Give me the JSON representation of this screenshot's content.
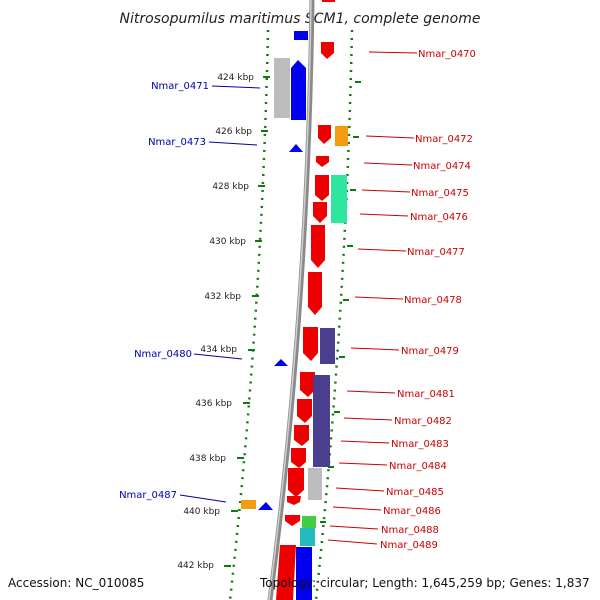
{
  "title": "Nitrosopumilus maritimus SCM1, complete genome",
  "footer": {
    "accession": "Accession: NC_010085",
    "topology": "Topology: circular; Length: 1,645,259 bp; Genes: 1,837"
  },
  "colors": {
    "forward": "#ee0000",
    "reverse": "#0000ee",
    "backbone": "#888888",
    "tick": "#117711",
    "navy": "#4a3f8f",
    "gray": "#bdbdbd",
    "orange": "#f39c12",
    "green": "#2ee6a0",
    "teal": "#22bcbc",
    "lime": "#44cc44"
  },
  "ticks": [
    {
      "label": "424 kbp",
      "kbp": 424
    },
    {
      "label": "426 kbp",
      "kbp": 426
    },
    {
      "label": "428 kbp",
      "kbp": 428
    },
    {
      "label": "430 kbp",
      "kbp": 430
    },
    {
      "label": "432 kbp",
      "kbp": 432
    },
    {
      "label": "434 kbp",
      "kbp": 434
    },
    {
      "label": "436 kbp",
      "kbp": 436
    },
    {
      "label": "438 kbp",
      "kbp": 438
    },
    {
      "label": "440 kbp",
      "kbp": 440
    },
    {
      "label": "442 kbp",
      "kbp": 442
    }
  ],
  "genes_right": [
    {
      "label": "Nmar_0470"
    },
    {
      "label": "Nmar_0472"
    },
    {
      "label": "Nmar_0474"
    },
    {
      "label": "Nmar_0475"
    },
    {
      "label": "Nmar_0476"
    },
    {
      "label": "Nmar_0477"
    },
    {
      "label": "Nmar_0478"
    },
    {
      "label": "Nmar_0479"
    },
    {
      "label": "Nmar_0481"
    },
    {
      "label": "Nmar_0482"
    },
    {
      "label": "Nmar_0483"
    },
    {
      "label": "Nmar_0484"
    },
    {
      "label": "Nmar_0485"
    },
    {
      "label": "Nmar_0486"
    },
    {
      "label": "Nmar_0488"
    },
    {
      "label": "Nmar_0489"
    }
  ],
  "genes_left": [
    {
      "label": "Nmar_0471"
    },
    {
      "label": "Nmar_0473"
    },
    {
      "label": "Nmar_0480"
    },
    {
      "label": "Nmar_0487"
    }
  ]
}
